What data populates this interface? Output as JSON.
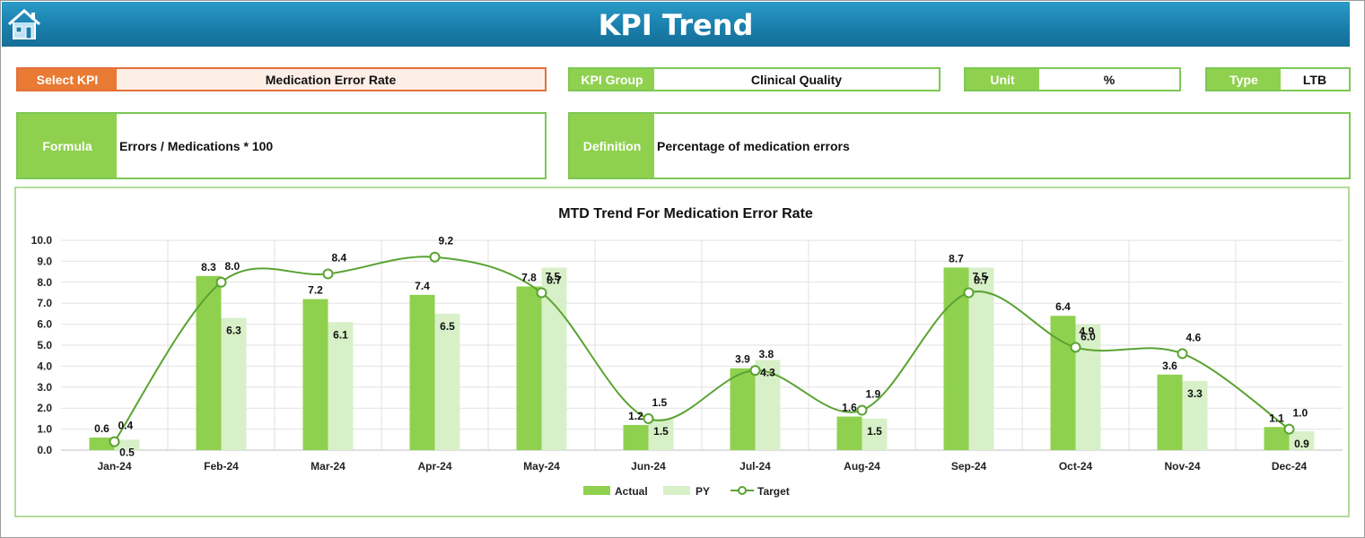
{
  "header": {
    "title": "KPI Trend",
    "home_icon": "home-icon"
  },
  "select_kpi": {
    "label": "Select KPI",
    "value": "Medication Error Rate"
  },
  "kpi_group": {
    "label": "KPI Group",
    "value": "Clinical Quality"
  },
  "unit": {
    "label": "Unit",
    "value": "%"
  },
  "type": {
    "label": "Type",
    "value": "LTB"
  },
  "formula": {
    "label": "Formula",
    "value": "Errors / Medications * 100"
  },
  "definition": {
    "label": "Definition",
    "value": "Percentage of medication errors"
  },
  "colors": {
    "actual": "#8fd14f",
    "py": "#d8f0c8",
    "target": "#5aa332",
    "header": "#1a7fac",
    "select": "#e97a33"
  },
  "chart_data": {
    "type": "bar",
    "title": "MTD Trend For Medication Error Rate",
    "categories": [
      "Jan-24",
      "Feb-24",
      "Mar-24",
      "Apr-24",
      "May-24",
      "Jun-24",
      "Jul-24",
      "Aug-24",
      "Sep-24",
      "Oct-24",
      "Nov-24",
      "Dec-24"
    ],
    "series": [
      {
        "name": "Actual",
        "type": "bar",
        "values": [
          0.6,
          8.3,
          7.2,
          7.4,
          7.8,
          1.2,
          3.9,
          1.6,
          8.7,
          6.4,
          3.6,
          1.1
        ]
      },
      {
        "name": "PY",
        "type": "bar",
        "values": [
          0.5,
          6.3,
          6.1,
          6.5,
          8.7,
          1.5,
          4.3,
          1.5,
          8.7,
          6.0,
          3.3,
          0.9
        ]
      },
      {
        "name": "Target",
        "type": "line",
        "values": [
          0.4,
          8.0,
          8.4,
          9.2,
          7.5,
          1.5,
          3.8,
          1.9,
          7.5,
          4.9,
          4.6,
          1.0
        ]
      }
    ],
    "ylim": [
      0,
      10
    ],
    "yticks": [
      "0.0",
      "1.0",
      "2.0",
      "3.0",
      "4.0",
      "5.0",
      "6.0",
      "7.0",
      "8.0",
      "9.0",
      "10.0"
    ],
    "grid": true,
    "legend": "bottom"
  }
}
